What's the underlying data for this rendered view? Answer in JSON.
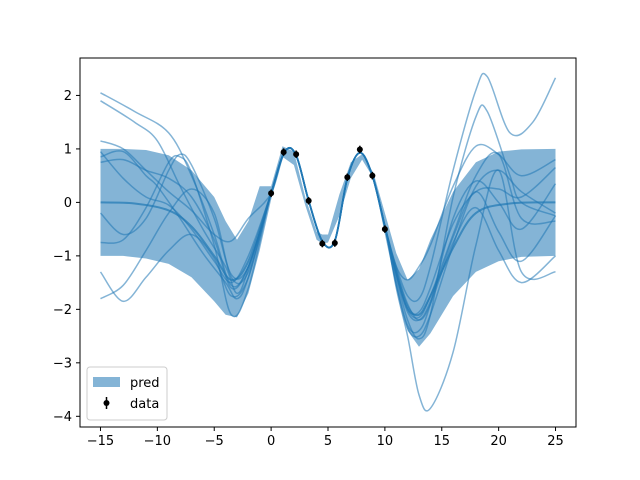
{
  "chart_data": {
    "type": "line",
    "title": "",
    "xlabel": "",
    "ylabel": "",
    "xlim": [
      -16.8,
      26.8
    ],
    "ylim": [
      -4.2,
      2.7
    ],
    "xticks": [
      -15,
      -10,
      -5,
      0,
      5,
      10,
      15,
      20,
      25
    ],
    "yticks": [
      -4,
      -3,
      -2,
      -1,
      0,
      1,
      2
    ],
    "xtick_labels": [
      "−15",
      "−10",
      "−5",
      "0",
      "5",
      "10",
      "15",
      "20",
      "25"
    ],
    "ytick_labels": [
      "−4",
      "−3",
      "−2",
      "−1",
      "0",
      "1",
      "2"
    ],
    "grid": false,
    "legend": {
      "position": "lower left",
      "entries": [
        {
          "label": "pred",
          "kind": "band"
        },
        {
          "label": "data",
          "kind": "errorbar"
        }
      ]
    },
    "colors": {
      "band": "#1f77b4",
      "band_alpha": 0.55,
      "samples": "#1f77b4",
      "samples_alpha": 0.55,
      "data": "#000000"
    },
    "data_points": {
      "name": "data",
      "x": [
        0.0,
        1.1,
        2.2,
        3.3,
        4.5,
        5.6,
        6.7,
        7.8,
        8.9,
        10.0
      ],
      "y": [
        0.17,
        0.94,
        0.9,
        0.03,
        -0.77,
        -0.76,
        0.47,
        0.99,
        0.5,
        -0.5
      ],
      "yerr": [
        0.07,
        0.07,
        0.07,
        0.07,
        0.07,
        0.07,
        0.07,
        0.07,
        0.07,
        0.07
      ]
    },
    "band": {
      "name": "pred",
      "x": [
        -15,
        -13,
        -11,
        -9,
        -7,
        -5,
        -4,
        -3,
        -2,
        -1,
        0,
        1,
        2,
        3,
        4,
        4.5,
        5,
        6,
        7,
        8,
        9,
        10,
        11,
        12,
        13,
        14,
        16,
        18,
        20,
        22,
        25
      ],
      "lower": [
        -1,
        -1,
        -1.05,
        -1.15,
        -1.4,
        -1.85,
        -2.1,
        -2.15,
        -1.7,
        -0.9,
        0.05,
        0.85,
        0.7,
        -0.05,
        -0.7,
        -0.77,
        -0.75,
        -0.25,
        0.45,
        0.8,
        0.45,
        -0.6,
        -1.6,
        -2.4,
        -2.7,
        -2.45,
        -1.75,
        -1.3,
        -1.1,
        -1.02,
        -1
      ],
      "upper": [
        1,
        1,
        0.98,
        0.88,
        0.6,
        0.1,
        -0.35,
        -0.7,
        -0.35,
        0.3,
        0.3,
        1.05,
        0.95,
        0.1,
        -0.55,
        -0.6,
        -0.6,
        0.15,
        0.75,
        0.9,
        0.55,
        -0.2,
        -0.95,
        -1.45,
        -1.25,
        -0.7,
        0.2,
        0.75,
        0.95,
        0.99,
        1
      ]
    },
    "mean": {
      "x": [
        -15,
        -12,
        -9,
        -7,
        -5,
        -3.5,
        -2,
        0,
        1.2,
        2.2,
        3.3,
        4.5,
        5.6,
        6.7,
        7.8,
        8.9,
        10,
        11,
        12,
        13,
        14,
        16,
        18,
        21,
        25
      ],
      "y": [
        0.0,
        -0.02,
        -0.15,
        -0.45,
        -1.0,
        -1.45,
        -1.1,
        0.17,
        0.95,
        0.88,
        0.03,
        -0.73,
        -0.72,
        0.45,
        0.93,
        0.5,
        -0.45,
        -1.3,
        -1.95,
        -2.1,
        -1.75,
        -0.85,
        -0.2,
        -0.02,
        0.0
      ]
    },
    "series": [
      {
        "x": [
          -15,
          -12,
          -9,
          -7,
          -5,
          -3.5,
          -2,
          0,
          1.2,
          2.2,
          3.3,
          4.5,
          5.6,
          6.7,
          7.8,
          8.9,
          10,
          11,
          12,
          13,
          14,
          16,
          18,
          19,
          21,
          23,
          25
        ],
        "y": [
          2.05,
          1.7,
          1.3,
          0.5,
          -0.6,
          -1.55,
          -1.2,
          0.17,
          0.95,
          0.88,
          0.03,
          -0.73,
          -0.72,
          0.45,
          0.93,
          0.5,
          -0.45,
          -1.2,
          -1.75,
          -1.8,
          -1.2,
          0.6,
          2.1,
          2.35,
          1.3,
          1.5,
          2.33
        ]
      },
      {
        "x": [
          -15,
          -12,
          -10,
          -8,
          -6,
          -4,
          -3,
          -2,
          0,
          1.2,
          2.2,
          3.3,
          4.5,
          5.6,
          6.7,
          7.8,
          8.9,
          10,
          11,
          12,
          13,
          14,
          16,
          18,
          19,
          21,
          22,
          25
        ],
        "y": [
          1.9,
          1.5,
          1.15,
          0.3,
          -0.5,
          -1.2,
          -1.7,
          -1.25,
          0.17,
          0.95,
          0.88,
          0.03,
          -0.73,
          -0.72,
          0.45,
          0.93,
          0.5,
          -0.45,
          -1.4,
          -2.2,
          -2.55,
          -2.1,
          0.1,
          1.6,
          1.7,
          0.5,
          0.0,
          -0.25
        ]
      },
      {
        "x": [
          -15,
          -13,
          -11,
          -9,
          -7,
          -5,
          -3.5,
          -2,
          0,
          1.2,
          2.2,
          3.3,
          4.5,
          5.6,
          6.7,
          7.8,
          8.9,
          10,
          11,
          12,
          13,
          14,
          16,
          18,
          20,
          22,
          25
        ],
        "y": [
          1.15,
          1.0,
          0.6,
          0.2,
          -0.15,
          -0.6,
          -0.72,
          -0.3,
          0.17,
          0.95,
          0.88,
          0.03,
          -0.73,
          -0.72,
          0.45,
          0.93,
          0.5,
          -0.45,
          -1.2,
          -1.45,
          -1.2,
          -0.8,
          0.3,
          1.05,
          0.9,
          0.5,
          0.8
        ]
      },
      {
        "x": [
          -15,
          -13,
          -11,
          -10,
          -8,
          -6,
          -4,
          -3,
          -2,
          0,
          1.2,
          2.2,
          3.3,
          4.5,
          5.6,
          6.7,
          7.8,
          8.9,
          10,
          11,
          12,
          13,
          14,
          16,
          18,
          20,
          22,
          25
        ],
        "y": [
          0.85,
          0.95,
          0.5,
          0.3,
          -0.3,
          -0.95,
          -1.5,
          -1.8,
          -1.4,
          0.17,
          0.95,
          0.88,
          0.03,
          -0.73,
          -0.72,
          0.45,
          0.93,
          0.5,
          -0.45,
          -1.6,
          -2.5,
          -3.6,
          -3.85,
          -2.8,
          -0.8,
          0.6,
          -1.3,
          -1.3
        ]
      },
      {
        "x": [
          -15,
          -13,
          -11,
          -9,
          -8,
          -7,
          -5,
          -3.5,
          -2,
          0,
          1.2,
          2.2,
          3.3,
          4.5,
          5.6,
          6.7,
          7.8,
          8.9,
          10,
          11,
          12,
          13,
          14,
          16,
          18,
          20,
          22,
          25
        ],
        "y": [
          -0.75,
          -0.7,
          -0.1,
          0.75,
          0.85,
          0.55,
          -0.8,
          -2.1,
          -1.6,
          0.17,
          0.95,
          0.88,
          0.03,
          -0.73,
          -0.72,
          0.45,
          0.93,
          0.5,
          -0.45,
          -1.55,
          -2.35,
          -2.5,
          -2.1,
          -0.8,
          0.3,
          0.6,
          0.2,
          -0.2
        ]
      },
      {
        "x": [
          -15,
          -13,
          -11,
          -9,
          -7,
          -5,
          -3.5,
          -2,
          0,
          1.2,
          2.2,
          3.3,
          4.5,
          5.6,
          6.7,
          7.8,
          8.9,
          10,
          11,
          12,
          13,
          14,
          16,
          18,
          20,
          22,
          25
        ],
        "y": [
          -1.3,
          -1.85,
          -1.4,
          -0.9,
          -0.6,
          -1.05,
          -1.75,
          -1.4,
          0.17,
          0.95,
          0.88,
          0.03,
          -0.73,
          -0.72,
          0.45,
          0.93,
          0.5,
          -0.45,
          -1.3,
          -2.0,
          -2.15,
          -1.75,
          -0.6,
          0.5,
          0.9,
          -0.3,
          -0.35
        ]
      },
      {
        "x": [
          -15,
          -13,
          -11,
          -9,
          -7,
          -5,
          -3.5,
          -2,
          0,
          1.2,
          2.2,
          3.3,
          4.5,
          5.6,
          6.7,
          7.8,
          8.9,
          10,
          11,
          12,
          13,
          14,
          16,
          18,
          20,
          22,
          25
        ],
        "y": [
          -1.8,
          -1.55,
          -0.9,
          -0.2,
          0.25,
          -0.2,
          -1.4,
          -1.3,
          0.17,
          0.95,
          0.88,
          0.03,
          -0.73,
          -0.72,
          0.45,
          0.93,
          0.5,
          -0.45,
          -1.35,
          -2.0,
          -2.05,
          -1.6,
          -0.4,
          0.2,
          0.25,
          0.1,
          0.65
        ]
      },
      {
        "x": [
          -15,
          -13,
          -11,
          -9,
          -7,
          -5,
          -3.5,
          -2,
          0,
          1.2,
          2.2,
          3.3,
          4.5,
          5.6,
          6.7,
          7.8,
          8.9,
          10,
          11,
          12,
          13,
          14,
          16,
          18,
          20,
          22,
          25
        ],
        "y": [
          0.95,
          0.45,
          0.1,
          -0.05,
          -0.5,
          -1.1,
          -1.5,
          -1.0,
          0.17,
          0.95,
          0.88,
          0.03,
          -0.73,
          -0.72,
          0.45,
          0.93,
          0.5,
          -0.45,
          -1.25,
          -1.9,
          -2.2,
          -1.9,
          -0.75,
          -0.1,
          -0.9,
          -1.5,
          -1.0
        ]
      },
      {
        "x": [
          -15,
          -13,
          -11,
          -9,
          -7,
          -5,
          -3.5,
          -2,
          0,
          1.2,
          2.2,
          3.3,
          4.5,
          5.6,
          6.7,
          7.8,
          8.9,
          10,
          11,
          12,
          13,
          14,
          16,
          18,
          20,
          22,
          25
        ],
        "y": [
          0.75,
          0.8,
          0.6,
          0.45,
          0.1,
          -0.7,
          -1.6,
          -1.2,
          0.17,
          0.95,
          0.88,
          0.03,
          -0.73,
          -0.72,
          0.45,
          0.93,
          0.5,
          -0.45,
          -1.5,
          -2.3,
          -2.4,
          -1.9,
          -0.3,
          0.4,
          0.0,
          -0.5,
          0.35
        ]
      },
      {
        "x": [
          -15,
          -13,
          -11,
          -9,
          -8,
          -7,
          -5,
          -3.5,
          -2,
          0,
          1.2,
          2.2,
          3.3,
          4.5,
          5.6,
          6.7,
          7.8,
          8.9,
          10,
          11,
          12,
          13,
          14,
          16,
          18,
          20,
          22,
          25
        ],
        "y": [
          -0.2,
          -0.6,
          -0.3,
          0.6,
          0.9,
          0.7,
          -0.3,
          -1.35,
          -1.2,
          0.17,
          0.95,
          0.88,
          0.03,
          -0.73,
          -0.72,
          0.45,
          0.93,
          0.5,
          -0.45,
          -1.35,
          -2.05,
          -2.2,
          -1.85,
          -0.65,
          0.2,
          -0.55,
          -1.1,
          -0.25
        ]
      }
    ]
  }
}
